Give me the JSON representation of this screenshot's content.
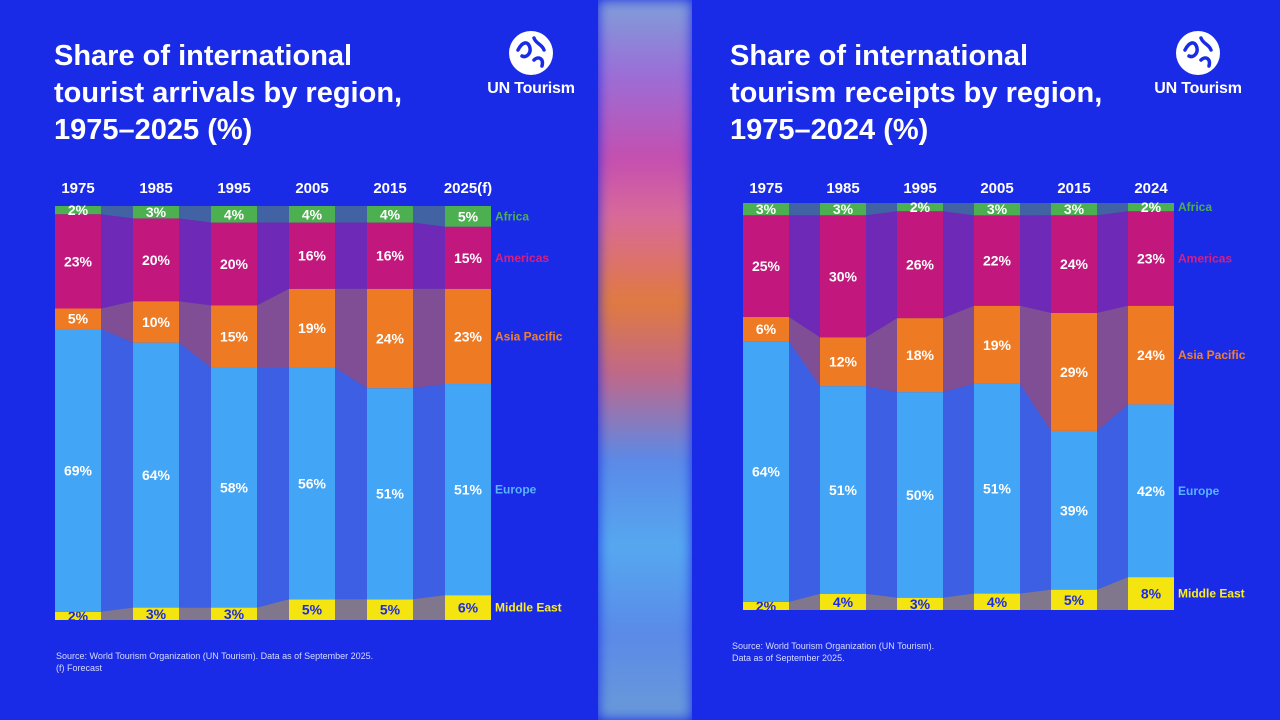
{
  "colors": {
    "background": "#1a2be8",
    "Africa": "#4caf50",
    "Americas": "#c2187e",
    "Asia Pacific": "#ef7a24",
    "Europe": "#42a5f5",
    "Middle East": "#f4e511",
    "Africa_label": "#4caf50",
    "Americas_label": "#d6207e",
    "Asia Pacific_label": "#f08030",
    "Europe_label": "#59b4ff",
    "Middle East_label": "#ffee20"
  },
  "brand": {
    "logo_text": "UN Tourism",
    "logo_icon": "un-tourism-logo-icon"
  },
  "left": {
    "title": "Share of international\ntourist arrivals by region,\n1975–2025 (%)",
    "source": "Source: World Tourism Organization (UN Tourism). Data as of September 2025.\n(f) Forecast"
  },
  "right": {
    "title": "Share of international\ntourism receipts by region,\n1975–2024 (%)",
    "source": "Source: World Tourism Organization (UN Tourism).\nData as of September 2025."
  },
  "chart_data": [
    {
      "type": "bar",
      "stacked": true,
      "title": "Share of international tourist arrivals by region, 1975–2025 (%)",
      "categories": [
        "1975",
        "1985",
        "1995",
        "2005",
        "2015",
        "2025(f)"
      ],
      "series": [
        {
          "name": "Middle East",
          "values": [
            2,
            3,
            3,
            5,
            5,
            6
          ]
        },
        {
          "name": "Europe",
          "values": [
            69,
            64,
            58,
            56,
            51,
            51
          ]
        },
        {
          "name": "Asia Pacific",
          "values": [
            5,
            10,
            15,
            19,
            24,
            23
          ]
        },
        {
          "name": "Americas",
          "values": [
            23,
            20,
            20,
            16,
            16,
            15
          ]
        },
        {
          "name": "Africa",
          "values": [
            2,
            3,
            4,
            4,
            4,
            5
          ]
        }
      ],
      "value_suffix": "%",
      "legend_position": "right"
    },
    {
      "type": "bar",
      "stacked": true,
      "title": "Share of international tourism receipts by region, 1975–2024 (%)",
      "categories": [
        "1975",
        "1985",
        "1995",
        "2005",
        "2015",
        "2024"
      ],
      "series": [
        {
          "name": "Middle East",
          "values": [
            2,
            4,
            3,
            4,
            5,
            8
          ]
        },
        {
          "name": "Europe",
          "values": [
            64,
            51,
            50,
            51,
            39,
            42
          ]
        },
        {
          "name": "Asia Pacific",
          "values": [
            6,
            12,
            18,
            19,
            29,
            24
          ]
        },
        {
          "name": "Americas",
          "values": [
            25,
            30,
            26,
            22,
            24,
            23
          ]
        },
        {
          "name": "Africa",
          "values": [
            3,
            3,
            2,
            3,
            3,
            2
          ]
        }
      ],
      "value_suffix": "%",
      "legend_position": "right"
    }
  ]
}
